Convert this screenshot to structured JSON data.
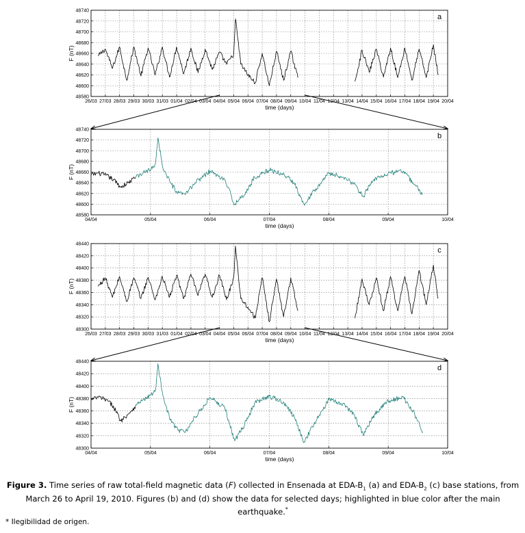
{
  "caption": {
    "label": "Figure 3.",
    "text_1": " Time series of raw total-field magnetic data (",
    "italic_var": "F",
    "text_2": ") collected in Ensenada at EDA-B",
    "sub_1": "1",
    "text_3": " (a) and EDA-B",
    "sub_2": "2",
    "text_4": " (c) base stations, from March 26 to April 19, 2010. Figures (b) and (d) show the data for selected days; highlighted in blue color after the main earthquake.",
    "sup": "*"
  },
  "footnote": "* Ilegibilidad de origen.",
  "colors": {
    "pre_quake": "#000000",
    "post_quake": "#1e7f78"
  },
  "chart_data": [
    {
      "panel": "a",
      "type": "line",
      "xlabel": "time (days)",
      "ylabel": "F (nT)",
      "xticks": [
        "26/03",
        "27/03",
        "28/03",
        "29/03",
        "30/03",
        "31/03",
        "01/04",
        "02/04",
        "03/04",
        "04/04",
        "05/04",
        "06/04",
        "07/04",
        "08/04",
        "09/04",
        "10/04",
        "11/04",
        "12/04",
        "13/04",
        "14/04",
        "15/04",
        "16/04",
        "17/04",
        "18/04",
        "19/04",
        "20/04"
      ],
      "xlim": [
        "26/03",
        "20/04"
      ],
      "yticks": [
        "48580",
        "48600",
        "48620",
        "48640",
        "48660",
        "48680",
        "48700",
        "48720",
        "48740"
      ],
      "ylim": [
        48580,
        48740
      ],
      "grid": true,
      "series": [
        {
          "color": "#000000",
          "x": [
            "26/03 12:00",
            "27/03 00:00",
            "27/03 12:00",
            "28/03 00:00",
            "28/03 12:00",
            "29/03 00:00",
            "29/03 12:00",
            "30/03 00:00",
            "30/03 12:00",
            "31/03 00:00",
            "31/03 12:00",
            "01/04 00:00",
            "01/04 12:00",
            "02/04 00:00",
            "02/04 12:00",
            "03/04 00:00",
            "03/04 12:00",
            "04/04 00:00",
            "04/04 12:00",
            "05/04 00:00",
            "05/04 03:00",
            "05/04 12:00",
            "06/04 00:00",
            "06/04 12:00",
            "07/04 00:00",
            "07/04 12:00",
            "08/04 00:00",
            "08/04 12:00",
            "09/04 00:00",
            "09/04 12:00",
            "13/04 12:00",
            "14/04 00:00",
            "14/04 12:00",
            "15/04 00:00",
            "15/04 12:00",
            "16/04 00:00",
            "16/04 12:00",
            "17/04 00:00",
            "17/04 12:00",
            "18/04 00:00",
            "18/04 12:00",
            "19/04 00:00",
            "19/04 08:00"
          ],
          "y": [
            48655,
            48668,
            48632,
            48672,
            48610,
            48672,
            48618,
            48670,
            48620,
            48672,
            48616,
            48672,
            48622,
            48670,
            48624,
            48668,
            48630,
            48662,
            48640,
            48658,
            48724,
            48640,
            48620,
            48605,
            48660,
            48600,
            48664,
            48610,
            48664,
            48615,
            48608,
            48666,
            48625,
            48668,
            48616,
            48670,
            48615,
            48670,
            48610,
            48668,
            48615,
            48676,
            48620
          ]
        }
      ]
    },
    {
      "panel": "b",
      "type": "line",
      "xlabel": "time (days)",
      "ylabel": "F (nT)",
      "xticks": [
        "04/04",
        "05/04",
        "06/04",
        "07/04",
        "08/04",
        "09/04",
        "10/04"
      ],
      "xlim": [
        "04/04",
        "10/04"
      ],
      "yticks": [
        "48580",
        "48600",
        "48620",
        "48640",
        "48660",
        "48680",
        "48700",
        "48720",
        "48740"
      ],
      "ylim": [
        48580,
        48740
      ],
      "grid": true,
      "series": [
        {
          "name": "",
          "color": "#000000",
          "x": [
            "04/04 00:00",
            "04/04 03:00",
            "04/04 06:00",
            "04/04 09:00",
            "04/04 12:00",
            "04/04 15:00",
            "04/04 18:00"
          ],
          "y": [
            48655,
            48658,
            48654,
            48646,
            48632,
            48640,
            48650
          ]
        },
        {
          "name": "",
          "color": "#1e7f78",
          "x": [
            "04/04 18:00",
            "04/04 21:00",
            "05/04 00:00",
            "05/04 02:00",
            "05/04 03:00",
            "05/04 05:00",
            "05/04 08:00",
            "05/04 11:00",
            "05/04 14:00",
            "05/04 18:00",
            "06/04 00:00",
            "06/04 06:00",
            "06/04 10:00",
            "06/04 14:00",
            "06/04 18:00",
            "07/04 00:00",
            "07/04 06:00",
            "07/04 10:00",
            "07/04 14:00",
            "07/04 18:00",
            "08/04 00:00",
            "08/04 06:00",
            "08/04 10:00",
            "08/04 14:00",
            "08/04 18:00",
            "09/04 00:00",
            "09/04 06:00",
            "09/04 10:00",
            "09/04 14:00"
          ],
          "y": [
            48650,
            48658,
            48664,
            48676,
            48724,
            48668,
            48640,
            48620,
            48618,
            48640,
            48662,
            48645,
            48600,
            48618,
            48650,
            48664,
            48655,
            48640,
            48600,
            48625,
            48658,
            48650,
            48638,
            48615,
            48645,
            48658,
            48662,
            48640,
            48618
          ]
        }
      ]
    },
    {
      "panel": "c",
      "type": "line",
      "xlabel": "time (days)",
      "ylabel": "F (nT)",
      "xticks": [
        "26/03",
        "27/03",
        "28/03",
        "29/03",
        "30/03",
        "31/03",
        "01/04",
        "02/04",
        "03/04",
        "04/04",
        "05/04",
        "06/04",
        "07/04",
        "08/04",
        "09/04",
        "10/04",
        "11/04",
        "12/04",
        "13/04",
        "14/04",
        "15/04",
        "16/04",
        "17/04",
        "18/04",
        "19/04",
        "20/04"
      ],
      "xlim": [
        "26/03",
        "20/04"
      ],
      "yticks": [
        "48300",
        "48320",
        "48340",
        "48360",
        "48380",
        "48400",
        "48420",
        "48440"
      ],
      "ylim": [
        48300,
        48440
      ],
      "grid": true,
      "series": [
        {
          "color": "#000000",
          "x": [
            "26/03 12:00",
            "27/03 00:00",
            "27/03 12:00",
            "28/03 00:00",
            "28/03 12:00",
            "29/03 00:00",
            "29/03 12:00",
            "30/03 00:00",
            "30/03 12:00",
            "31/03 00:00",
            "31/03 12:00",
            "01/04 00:00",
            "01/04 12:00",
            "02/04 00:00",
            "02/04 12:00",
            "03/04 00:00",
            "03/04 12:00",
            "04/04 00:00",
            "04/04 12:00",
            "05/04 00:00",
            "05/04 03:00",
            "05/04 12:00",
            "06/04 00:00",
            "06/04 12:00",
            "07/04 00:00",
            "07/04 12:00",
            "08/04 00:00",
            "08/04 12:00",
            "09/04 00:00",
            "09/04 12:00",
            "13/04 12:00",
            "14/04 00:00",
            "14/04 12:00",
            "15/04 00:00",
            "15/04 12:00",
            "16/04 00:00",
            "16/04 12:00",
            "17/04 00:00",
            "17/04 12:00",
            "18/04 00:00",
            "18/04 12:00",
            "19/04 00:00",
            "19/04 08:00"
          ],
          "y": [
            48370,
            48384,
            48352,
            48386,
            48345,
            48384,
            48350,
            48385,
            48348,
            48386,
            48352,
            48388,
            48350,
            48390,
            48355,
            48390,
            48352,
            48388,
            48348,
            48384,
            48436,
            48350,
            48336,
            48318,
            48384,
            48312,
            48382,
            48320,
            48384,
            48330,
            48318,
            48382,
            48340,
            48384,
            48330,
            48386,
            48330,
            48386,
            48325,
            48396,
            48340,
            48405,
            48350
          ]
        }
      ]
    },
    {
      "panel": "d",
      "type": "line",
      "xlabel": "time (days)",
      "ylabel": "F (nT)",
      "xticks": [
        "04/04",
        "05/04",
        "06/04",
        "07/04",
        "08/04",
        "09/04",
        "10/04"
      ],
      "xlim": [
        "04/04",
        "10/04"
      ],
      "yticks": [
        "48300",
        "48320",
        "48340",
        "48360",
        "48380",
        "48400",
        "48420",
        "48440"
      ],
      "ylim": [
        48300,
        48440
      ],
      "grid": true,
      "series": [
        {
          "name": "",
          "color": "#000000",
          "x": [
            "04/04 00:00",
            "04/04 03:00",
            "04/04 06:00",
            "04/04 09:00",
            "04/04 12:00",
            "04/04 15:00",
            "04/04 18:00"
          ],
          "y": [
            48378,
            48382,
            48378,
            48368,
            48344,
            48355,
            48368
          ]
        },
        {
          "name": "",
          "color": "#1e7f78",
          "x": [
            "04/04 18:00",
            "04/04 21:00",
            "05/04 00:00",
            "05/04 02:00",
            "05/04 03:00",
            "05/04 05:00",
            "05/04 08:00",
            "05/04 11:00",
            "05/04 14:00",
            "05/04 18:00",
            "06/04 00:00",
            "06/04 06:00",
            "06/04 10:00",
            "06/04 14:00",
            "06/04 18:00",
            "07/04 00:00",
            "07/04 06:00",
            "07/04 10:00",
            "07/04 14:00",
            "07/04 18:00",
            "08/04 00:00",
            "08/04 06:00",
            "08/04 10:00",
            "08/04 14:00",
            "08/04 18:00",
            "09/04 00:00",
            "09/04 06:00",
            "09/04 10:00",
            "09/04 14:00"
          ],
          "y": [
            48368,
            48378,
            48386,
            48392,
            48436,
            48385,
            48345,
            48330,
            48325,
            48350,
            48382,
            48365,
            48312,
            48338,
            48372,
            48384,
            48372,
            48350,
            48310,
            48338,
            48378,
            48372,
            48355,
            48320,
            48352,
            48376,
            48382,
            48360,
            48326
          ]
        }
      ]
    }
  ]
}
